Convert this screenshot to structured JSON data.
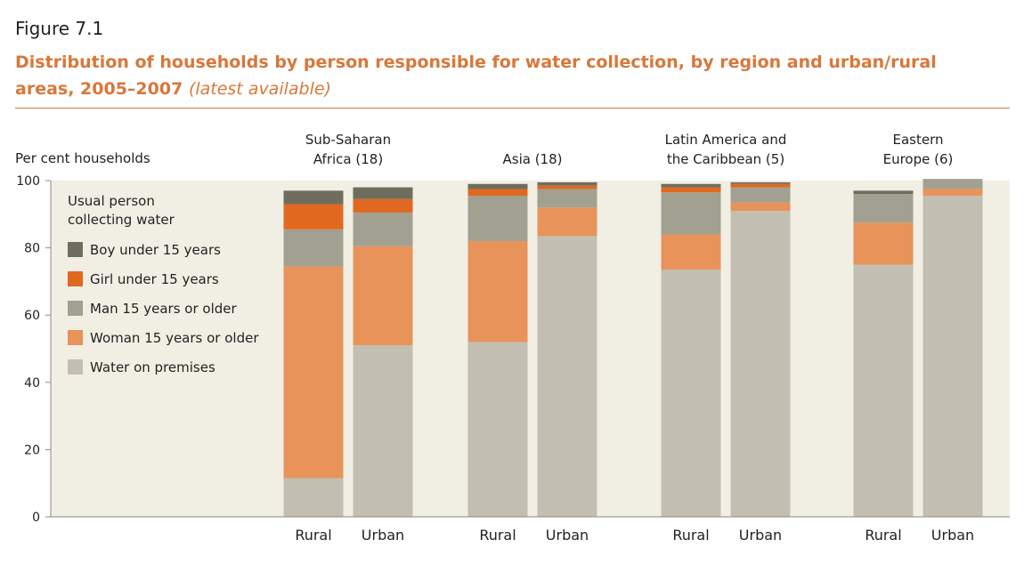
{
  "figure_label": "Figure 7.1",
  "title_main": "Distribution of households by person responsible for water collection, by region and urban/rural areas, 2005–2007",
  "title_sub": "(latest available)",
  "colors": {
    "plot_bg": "#f1efe4",
    "boy": "#6f6e5e",
    "girl": "#e0681f",
    "man": "#a2a191",
    "woman": "#e8935a",
    "premises": "#c2bfb2",
    "accent": "#d9773a"
  },
  "chart_data": {
    "type": "bar",
    "stacked": true,
    "ylabel": "Per cent households",
    "ylim": [
      0,
      100
    ],
    "yticks": [
      0,
      20,
      40,
      60,
      80,
      100
    ],
    "grid": false,
    "legend_title": "Usual person collecting water",
    "legend_position": "top-left",
    "groups": [
      {
        "name": "Sub-Saharan Africa (18)",
        "name_lines": [
          "Sub-Saharan",
          "Africa (18)"
        ]
      },
      {
        "name": "Asia (18)",
        "name_lines": [
          "",
          "Asia (18)"
        ]
      },
      {
        "name": "Latin America and the Caribbean (5)",
        "name_lines": [
          "Latin America and",
          "the Caribbean (5)"
        ]
      },
      {
        "name": "Eastern Europe (6)",
        "name_lines": [
          "Eastern",
          "Europe (6)"
        ]
      }
    ],
    "categories": [
      "Rural",
      "Urban",
      "Rural",
      "Urban",
      "Rural",
      "Urban",
      "Rural",
      "Urban"
    ],
    "series": [
      {
        "name": "Water on premises",
        "key": "premises",
        "values": [
          11.5,
          51,
          52,
          83.5,
          73.5,
          91,
          75,
          95.5
        ]
      },
      {
        "name": "Woman 15 years or older",
        "key": "woman",
        "values": [
          63,
          29.5,
          30,
          8.5,
          10.5,
          2.5,
          12.5,
          2
        ]
      },
      {
        "name": "Man 15 years or older",
        "key": "man",
        "values": [
          11,
          10,
          13.5,
          5.5,
          12.5,
          4.5,
          8.5,
          3
        ]
      },
      {
        "name": "Girl under 15 years",
        "key": "girl",
        "values": [
          7.5,
          4,
          2,
          1,
          1.5,
          1,
          0,
          0
        ]
      },
      {
        "name": "Boy under 15 years",
        "key": "boy",
        "values": [
          4,
          3.5,
          1.5,
          1,
          1,
          0.5,
          1,
          0
        ]
      }
    ],
    "legend_order": [
      "Boy under 15 years",
      "Girl under 15 years",
      "Man 15 years or older",
      "Woman 15 years or older",
      "Water on premises"
    ]
  }
}
